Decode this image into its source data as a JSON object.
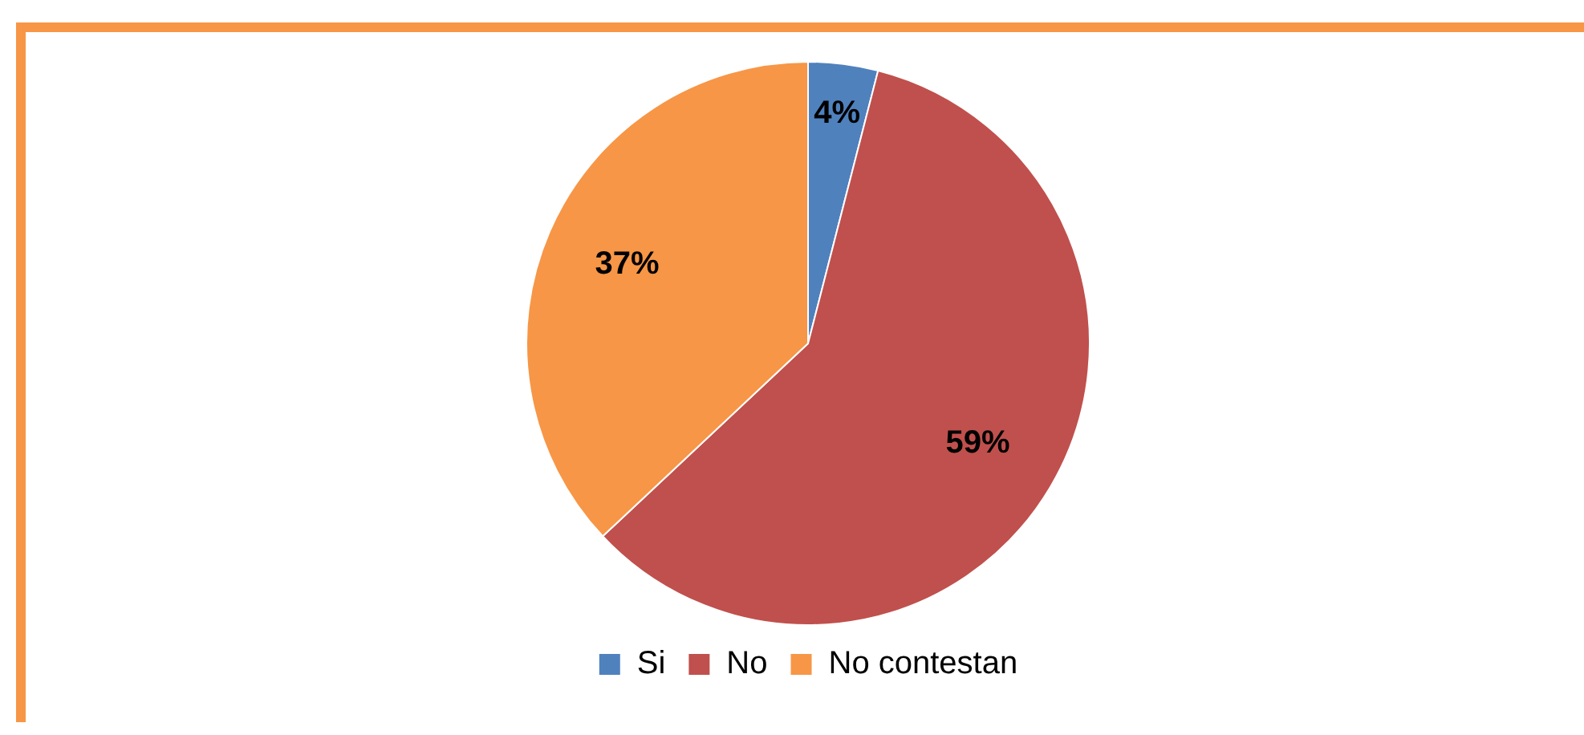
{
  "chart_data": {
    "type": "pie",
    "categories": [
      "Si",
      "No",
      "No contestan"
    ],
    "values": [
      4,
      59,
      37
    ],
    "colors": [
      "#4f81bd",
      "#c0504d",
      "#f79646"
    ],
    "value_labels": [
      "4%",
      "59%",
      "37%"
    ],
    "legend": "bottom"
  }
}
